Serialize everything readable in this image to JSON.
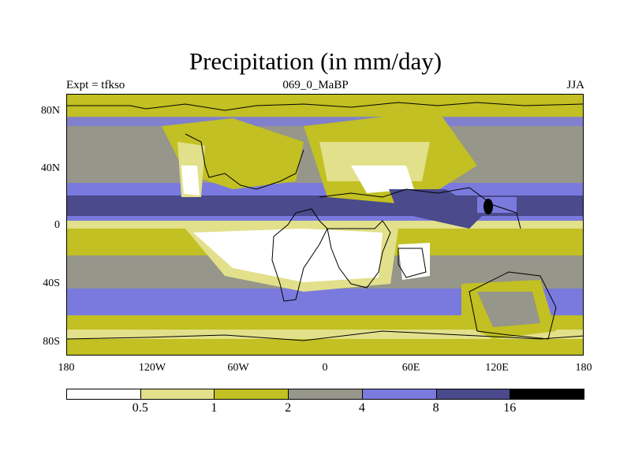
{
  "header": {
    "title": "Precipitation (in mm/day)",
    "experiment": "Expt = tfkso",
    "run_id": "069_0_MaBP",
    "season": "JJA"
  },
  "axes": {
    "y_ticks": [
      "80N",
      "40N",
      "0",
      "40S",
      "80S"
    ],
    "x_ticks": [
      "180",
      "120W",
      "60W",
      "0",
      "60E",
      "120E",
      "180"
    ]
  },
  "colorbar": {
    "labels": [
      "0.5",
      "1",
      "2",
      "4",
      "8",
      "16"
    ],
    "colors": [
      "#ffffff",
      "#e2e08a",
      "#c2c022",
      "#96968a",
      "#7a7ade",
      "#4a4a8c",
      "#000000"
    ]
  }
}
